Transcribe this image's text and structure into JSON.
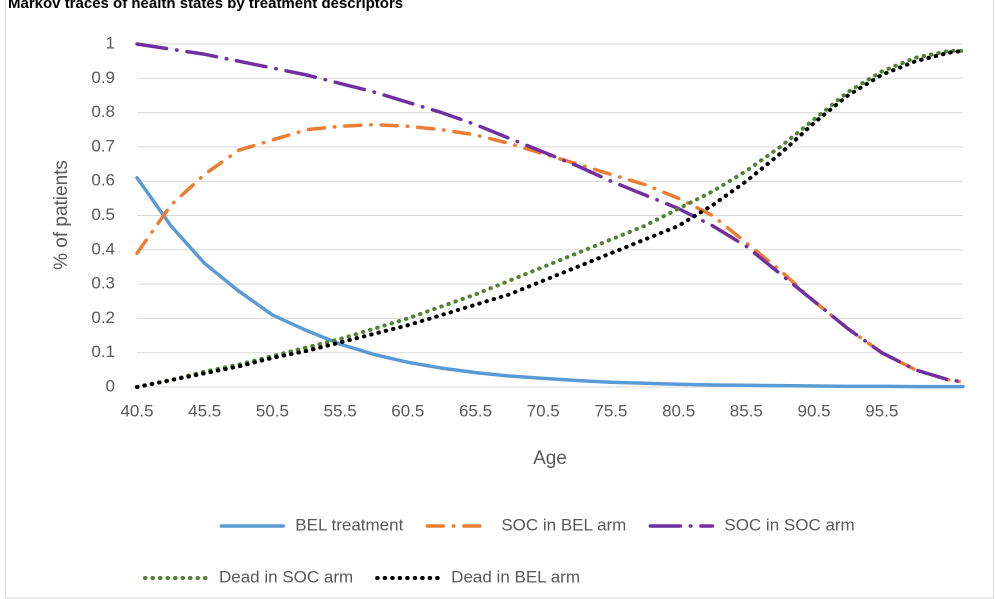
{
  "chart_data": {
    "type": "line",
    "title": "Markov traces of health states by treatment descriptors",
    "x_label": "Age",
    "y_label": "% of patients",
    "x": [
      40.5,
      43,
      45.5,
      48,
      50.5,
      53,
      55.5,
      58,
      60.5,
      63,
      65.5,
      68,
      70.5,
      73,
      75.5,
      78,
      80.5,
      83,
      85.5,
      88,
      90.5,
      93,
      95.5,
      98,
      100.5,
      101.5
    ],
    "series": [
      {
        "name": "BEL treatment",
        "color": "#5b9bd5",
        "style": "solid",
        "values": [
          0.61,
          0.47,
          0.36,
          0.28,
          0.21,
          0.165,
          0.125,
          0.095,
          0.072,
          0.055,
          0.042,
          0.032,
          0.025,
          0.019,
          0.014,
          0.011,
          0.008,
          0.006,
          0.005,
          0.004,
          0.003,
          0.002,
          0.002,
          0.001,
          0.001,
          0.001
        ]
      },
      {
        "name": "SOC in BEL arm",
        "color": "#ed7d31",
        "style": "dashdot",
        "values": [
          0.39,
          0.53,
          0.62,
          0.69,
          0.72,
          0.75,
          0.76,
          0.765,
          0.76,
          0.75,
          0.735,
          0.71,
          0.68,
          0.65,
          0.62,
          0.59,
          0.55,
          0.5,
          0.42,
          0.34,
          0.25,
          0.17,
          0.1,
          0.05,
          0.02,
          0.015
        ]
      },
      {
        "name": "SOC in SOC arm",
        "color": "#7030a0",
        "style": "longdashdot",
        "values": [
          1.0,
          0.985,
          0.97,
          0.95,
          0.93,
          0.91,
          0.885,
          0.86,
          0.83,
          0.8,
          0.765,
          0.725,
          0.685,
          0.645,
          0.6,
          0.56,
          0.52,
          0.47,
          0.41,
          0.33,
          0.25,
          0.17,
          0.1,
          0.05,
          0.02,
          0.015
        ]
      },
      {
        "name": "Dead in SOC arm",
        "color": "#548235",
        "style": "dotted",
        "values": [
          0,
          0.02,
          0.045,
          0.065,
          0.09,
          0.115,
          0.14,
          0.17,
          0.2,
          0.235,
          0.27,
          0.31,
          0.35,
          0.39,
          0.43,
          0.47,
          0.52,
          0.57,
          0.63,
          0.7,
          0.78,
          0.86,
          0.92,
          0.96,
          0.98,
          0.98
        ]
      },
      {
        "name": "Dead in BEL arm",
        "color": "#000000",
        "style": "dotted",
        "values": [
          0,
          0.02,
          0.04,
          0.06,
          0.085,
          0.105,
          0.13,
          0.155,
          0.18,
          0.21,
          0.24,
          0.27,
          0.31,
          0.35,
          0.39,
          0.43,
          0.47,
          0.53,
          0.6,
          0.68,
          0.77,
          0.85,
          0.91,
          0.95,
          0.975,
          0.98
        ]
      }
    ],
    "xlim": [
      40.5,
      101.5
    ],
    "xticks": [
      40.5,
      45.5,
      50.5,
      55.5,
      60.5,
      65.5,
      70.5,
      75.5,
      80.5,
      85.5,
      90.5,
      95.5
    ],
    "ylim": [
      0,
      1
    ],
    "yticks": [
      0,
      0.1,
      0.2,
      0.3,
      0.4,
      0.5,
      0.6,
      0.7,
      0.8,
      0.9,
      1
    ],
    "grid": true,
    "legend": "bottom"
  }
}
